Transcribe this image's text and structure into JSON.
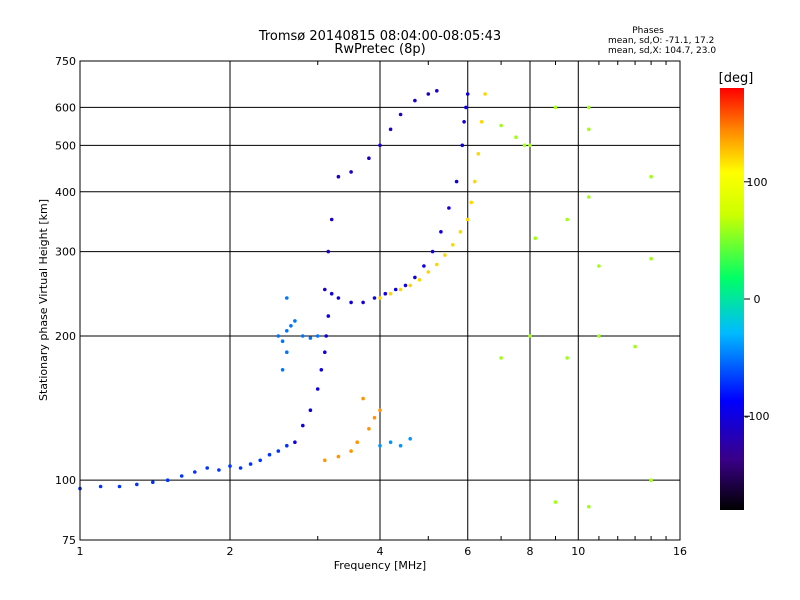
{
  "chart_data": {
    "type": "scatter",
    "title": "Tromsø 20140815 08:04:00-08:05:43",
    "subtitle": "RwPretec (8p)",
    "xlabel": "Frequency [MHz]",
    "ylabel": "Stationary phase Virtual Height [km]",
    "x_scale": "log",
    "y_scale": "log",
    "xlim": [
      1,
      16
    ],
    "ylim": [
      75,
      750
    ],
    "x_ticks": [
      1,
      2,
      4,
      6,
      8,
      10,
      16
    ],
    "x_tick_labels": [
      "1",
      "2",
      "4",
      "6",
      "8",
      "10",
      "16"
    ],
    "y_ticks": [
      75,
      100,
      200,
      300,
      400,
      500,
      600,
      750
    ],
    "y_tick_labels": [
      "75",
      "100",
      "200",
      "300",
      "400",
      "500",
      "600",
      "750"
    ],
    "grid": true,
    "phase_stats": {
      "heading": "Phases",
      "line_o": "mean, sd,O: -71.1, 17.2",
      "line_x": "mean, sd,X: 104.7, 23.0"
    },
    "colorbar": {
      "label": "[deg]",
      "min": -180,
      "max": 180,
      "ticks": [
        100,
        0,
        -100
      ],
      "tick_labels": [
        "100",
        "0",
        "-100"
      ]
    },
    "series": [
      {
        "name": "low-frequency trace",
        "phase": -70,
        "points": [
          [
            1.0,
            96
          ],
          [
            1.1,
            97
          ],
          [
            1.2,
            97
          ],
          [
            1.3,
            98
          ],
          [
            1.4,
            99
          ],
          [
            1.5,
            100
          ],
          [
            1.6,
            102
          ],
          [
            1.7,
            104
          ],
          [
            1.8,
            106
          ],
          [
            1.9,
            105
          ],
          [
            2.0,
            107
          ],
          [
            2.1,
            106
          ],
          [
            2.2,
            108
          ],
          [
            2.3,
            110
          ],
          [
            2.4,
            113
          ],
          [
            2.5,
            115
          ],
          [
            2.6,
            118
          ]
        ]
      },
      {
        "name": "cyan blob",
        "phase": -50,
        "points": [
          [
            2.5,
            200
          ],
          [
            2.55,
            195
          ],
          [
            2.6,
            205
          ],
          [
            2.65,
            210
          ],
          [
            2.7,
            215
          ],
          [
            2.8,
            200
          ],
          [
            2.9,
            198
          ],
          [
            3.0,
            200
          ],
          [
            2.6,
            185
          ],
          [
            2.55,
            170
          ],
          [
            2.6,
            240
          ]
        ]
      },
      {
        "name": "O mode lower",
        "phase": -100,
        "points": [
          [
            2.7,
            120
          ],
          [
            2.8,
            130
          ],
          [
            2.9,
            140
          ],
          [
            3.0,
            155
          ],
          [
            3.05,
            170
          ],
          [
            3.1,
            185
          ],
          [
            3.12,
            200
          ],
          [
            3.15,
            220
          ],
          [
            3.2,
            245
          ],
          [
            3.3,
            240
          ],
          [
            3.5,
            235
          ],
          [
            3.7,
            235
          ],
          [
            3.9,
            240
          ],
          [
            4.1,
            245
          ],
          [
            4.3,
            250
          ],
          [
            4.5,
            255
          ],
          [
            4.7,
            265
          ],
          [
            4.9,
            280
          ],
          [
            5.1,
            300
          ],
          [
            5.3,
            330
          ],
          [
            5.5,
            370
          ],
          [
            5.7,
            420
          ],
          [
            5.85,
            500
          ],
          [
            5.9,
            560
          ],
          [
            5.95,
            600
          ],
          [
            6.0,
            640
          ]
        ]
      },
      {
        "name": "O mode upper",
        "phase": -110,
        "points": [
          [
            3.1,
            250
          ],
          [
            3.15,
            300
          ],
          [
            3.2,
            350
          ],
          [
            3.3,
            430
          ],
          [
            3.5,
            440
          ],
          [
            3.8,
            470
          ],
          [
            4.0,
            500
          ],
          [
            4.2,
            540
          ],
          [
            4.4,
            580
          ],
          [
            4.7,
            620
          ],
          [
            5.0,
            640
          ],
          [
            5.2,
            650
          ]
        ]
      },
      {
        "name": "X mode",
        "phase": 120,
        "points": [
          [
            4.0,
            240
          ],
          [
            4.2,
            245
          ],
          [
            4.4,
            250
          ],
          [
            4.6,
            255
          ],
          [
            4.8,
            262
          ],
          [
            5.0,
            272
          ],
          [
            5.2,
            282
          ],
          [
            5.4,
            295
          ],
          [
            5.6,
            310
          ],
          [
            5.8,
            330
          ],
          [
            6.0,
            350
          ],
          [
            6.1,
            380
          ],
          [
            6.2,
            420
          ],
          [
            6.3,
            480
          ],
          [
            6.4,
            560
          ],
          [
            6.5,
            640
          ]
        ]
      },
      {
        "name": "E-region echoes",
        "phase": 140,
        "points": [
          [
            3.1,
            110
          ],
          [
            3.3,
            112
          ],
          [
            3.5,
            115
          ],
          [
            3.6,
            120
          ],
          [
            3.8,
            128
          ],
          [
            3.9,
            135
          ],
          [
            4.0,
            140
          ],
          [
            3.7,
            148
          ]
        ]
      },
      {
        "name": "sporadic cyan",
        "phase": -40,
        "points": [
          [
            4.0,
            118
          ],
          [
            4.2,
            120
          ],
          [
            4.4,
            118
          ],
          [
            4.6,
            122
          ]
        ]
      },
      {
        "name": "scattered points",
        "phase": 60,
        "points": [
          [
            7.0,
            550
          ],
          [
            7.5,
            520
          ],
          [
            8.0,
            500
          ],
          [
            8.2,
            320
          ],
          [
            9.0,
            600
          ],
          [
            9.5,
            350
          ],
          [
            10.5,
            600
          ],
          [
            10.5,
            390
          ],
          [
            11.0,
            280
          ],
          [
            14.0,
            430
          ],
          [
            14.0,
            290
          ],
          [
            11.0,
            200
          ],
          [
            8.0,
            200
          ],
          [
            7.0,
            180
          ],
          [
            9.0,
            90
          ],
          [
            10.5,
            88
          ],
          [
            14.0,
            100
          ],
          [
            10.5,
            540
          ],
          [
            7.8,
            500
          ],
          [
            13.0,
            190
          ],
          [
            9.5,
            180
          ]
        ]
      }
    ]
  }
}
